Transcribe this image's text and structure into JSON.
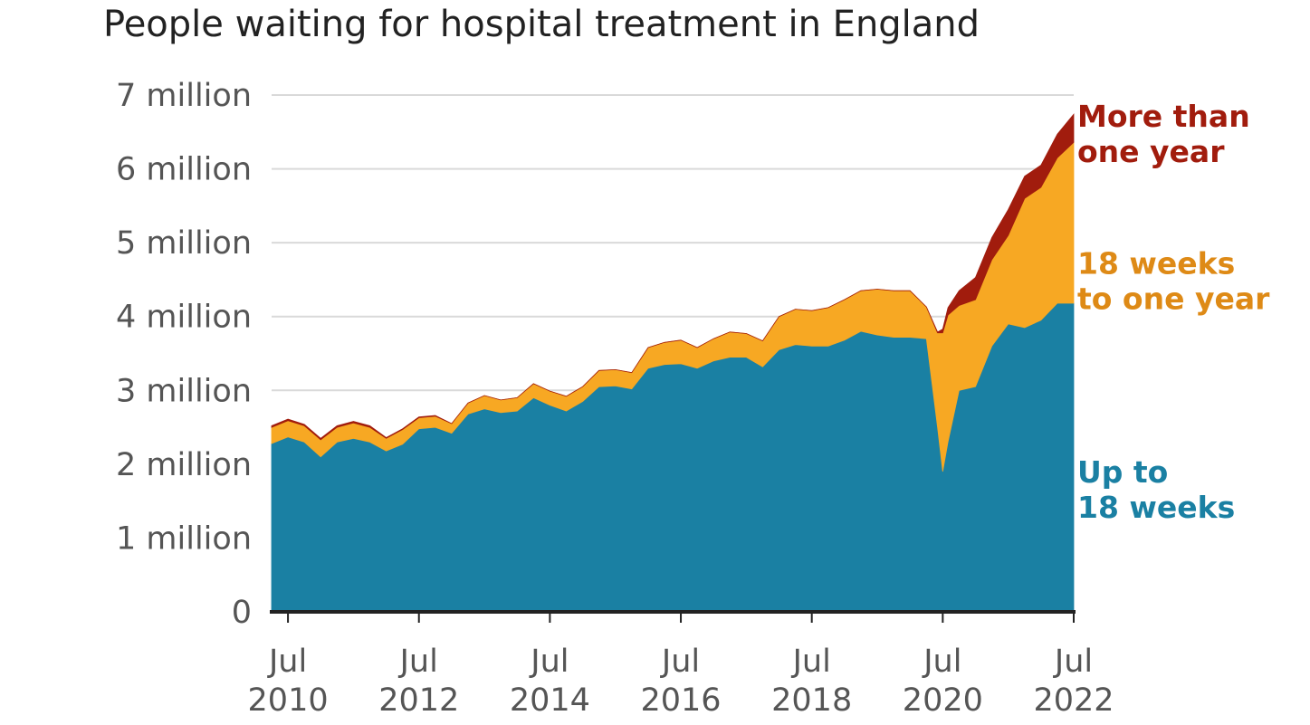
{
  "chart_data": {
    "type": "area",
    "stacked": true,
    "title": "People waiting for hospital treatment in England",
    "xlabel": "",
    "ylabel": "",
    "ylim": [
      0,
      7
    ],
    "y_unit": "million",
    "grid": true,
    "yticks": [
      {
        "value": 0,
        "label": "0"
      },
      {
        "value": 1,
        "label": "1 million"
      },
      {
        "value": 2,
        "label": "2 million"
      },
      {
        "value": 3,
        "label": "3 million"
      },
      {
        "value": 4,
        "label": "4 million"
      },
      {
        "value": 5,
        "label": "5 million"
      },
      {
        "value": 6,
        "label": "6 million"
      },
      {
        "value": 7,
        "label": "7 million"
      }
    ],
    "xticks": [
      {
        "value": 2010.5,
        "line1": "Jul",
        "line2": "2010"
      },
      {
        "value": 2012.5,
        "line1": "Jul",
        "line2": "2012"
      },
      {
        "value": 2014.5,
        "line1": "Jul",
        "line2": "2014"
      },
      {
        "value": 2016.5,
        "line1": "Jul",
        "line2": "2016"
      },
      {
        "value": 2018.5,
        "line1": "Jul",
        "line2": "2018"
      },
      {
        "value": 2020.5,
        "line1": "Jul",
        "line2": "2020"
      },
      {
        "value": 2022.5,
        "line1": "Jul",
        "line2": "2022"
      }
    ],
    "xlim": [
      2010.25,
      2022.5
    ],
    "x": [
      2010.25,
      2010.5,
      2010.75,
      2011.0,
      2011.25,
      2011.5,
      2011.75,
      2012.0,
      2012.25,
      2012.5,
      2012.75,
      2013.0,
      2013.25,
      2013.5,
      2013.75,
      2014.0,
      2014.25,
      2014.5,
      2014.75,
      2015.0,
      2015.25,
      2015.5,
      2015.75,
      2016.0,
      2016.25,
      2016.5,
      2016.75,
      2017.0,
      2017.25,
      2017.5,
      2017.75,
      2018.0,
      2018.25,
      2018.5,
      2018.75,
      2019.0,
      2019.25,
      2019.5,
      2019.75,
      2020.0,
      2020.25,
      2020.42,
      2020.5,
      2020.58,
      2020.75,
      2021.0,
      2021.25,
      2021.5,
      2021.75,
      2022.0,
      2022.25,
      2022.5
    ],
    "series": [
      {
        "name": "Up to 18 weeks",
        "color": "#1a80a3",
        "values": [
          2.28,
          2.37,
          2.3,
          2.1,
          2.3,
          2.35,
          2.3,
          2.18,
          2.27,
          2.48,
          2.5,
          2.42,
          2.68,
          2.75,
          2.7,
          2.72,
          2.9,
          2.8,
          2.72,
          2.85,
          3.05,
          3.06,
          3.02,
          3.3,
          3.35,
          3.36,
          3.3,
          3.4,
          3.45,
          3.45,
          3.32,
          3.55,
          3.62,
          3.6,
          3.6,
          3.68,
          3.8,
          3.75,
          3.72,
          3.72,
          3.7,
          2.5,
          1.9,
          2.3,
          3.0,
          3.05,
          3.6,
          3.9,
          3.85,
          3.95,
          4.18,
          4.18
        ]
      },
      {
        "name": "18 weeks to one year",
        "color": "#f7a823",
        "values": [
          0.22,
          0.22,
          0.22,
          0.23,
          0.2,
          0.21,
          0.2,
          0.17,
          0.2,
          0.15,
          0.15,
          0.13,
          0.15,
          0.18,
          0.17,
          0.18,
          0.19,
          0.19,
          0.2,
          0.2,
          0.22,
          0.22,
          0.22,
          0.28,
          0.3,
          0.32,
          0.28,
          0.3,
          0.34,
          0.32,
          0.35,
          0.45,
          0.48,
          0.48,
          0.52,
          0.55,
          0.55,
          0.62,
          0.63,
          0.63,
          0.43,
          1.28,
          1.88,
          1.72,
          1.15,
          1.18,
          1.17,
          1.2,
          1.75,
          1.8,
          1.97,
          2.18
        ]
      },
      {
        "name": "More than one year",
        "color": "#a11c0d",
        "values": [
          0.02,
          0.02,
          0.02,
          0.02,
          0.02,
          0.02,
          0.02,
          0.01,
          0.01,
          0.01,
          0.01,
          0.0,
          0.0,
          0.0,
          0.0,
          0.0,
          0.0,
          0.0,
          0.0,
          0.0,
          0.0,
          0.0,
          0.0,
          0.0,
          0.0,
          0.0,
          0.0,
          0.0,
          0.0,
          0.0,
          0.0,
          0.0,
          0.0,
          0.0,
          0.0,
          0.0,
          0.0,
          0.0,
          0.0,
          0.0,
          0.0,
          0.01,
          0.05,
          0.1,
          0.2,
          0.3,
          0.3,
          0.35,
          0.3,
          0.3,
          0.32,
          0.38
        ]
      }
    ],
    "labels": [
      {
        "series": 2,
        "lines": [
          "More than",
          "one year"
        ],
        "color": "#a11c0d"
      },
      {
        "series": 1,
        "lines": [
          "18 weeks",
          "to one year"
        ],
        "color": "#de8a16"
      },
      {
        "series": 0,
        "lines": [
          "Up to",
          "18 weeks"
        ],
        "color": "#1a80a3"
      }
    ]
  }
}
